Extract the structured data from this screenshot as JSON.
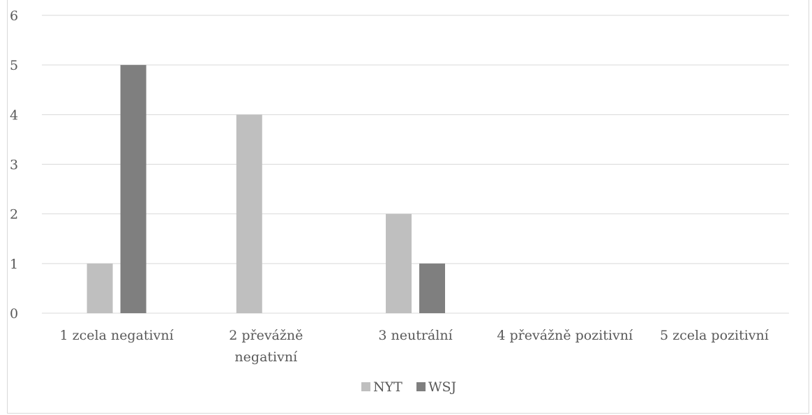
{
  "chart_data": {
    "type": "bar",
    "title": "",
    "xlabel": "",
    "ylabel": "",
    "ylim": [
      0,
      6
    ],
    "yticks": [
      "0",
      "1",
      "2",
      "3",
      "4",
      "5",
      "6"
    ],
    "grid": true,
    "legend_position": "bottom",
    "categories": [
      [
        "1 zcela negativní"
      ],
      [
        "2 převážně",
        "negativní"
      ],
      [
        "3 neutrální"
      ],
      [
        "4 převážně pozitivní"
      ],
      [
        "5 zcela pozitivní"
      ]
    ],
    "series": [
      {
        "name": "NYT",
        "values": [
          1,
          4,
          2,
          0,
          0
        ],
        "color": "#bfbfbf"
      },
      {
        "name": "WSJ",
        "values": [
          5,
          0,
          1,
          0,
          0
        ],
        "color": "#7f7f7f"
      }
    ]
  }
}
